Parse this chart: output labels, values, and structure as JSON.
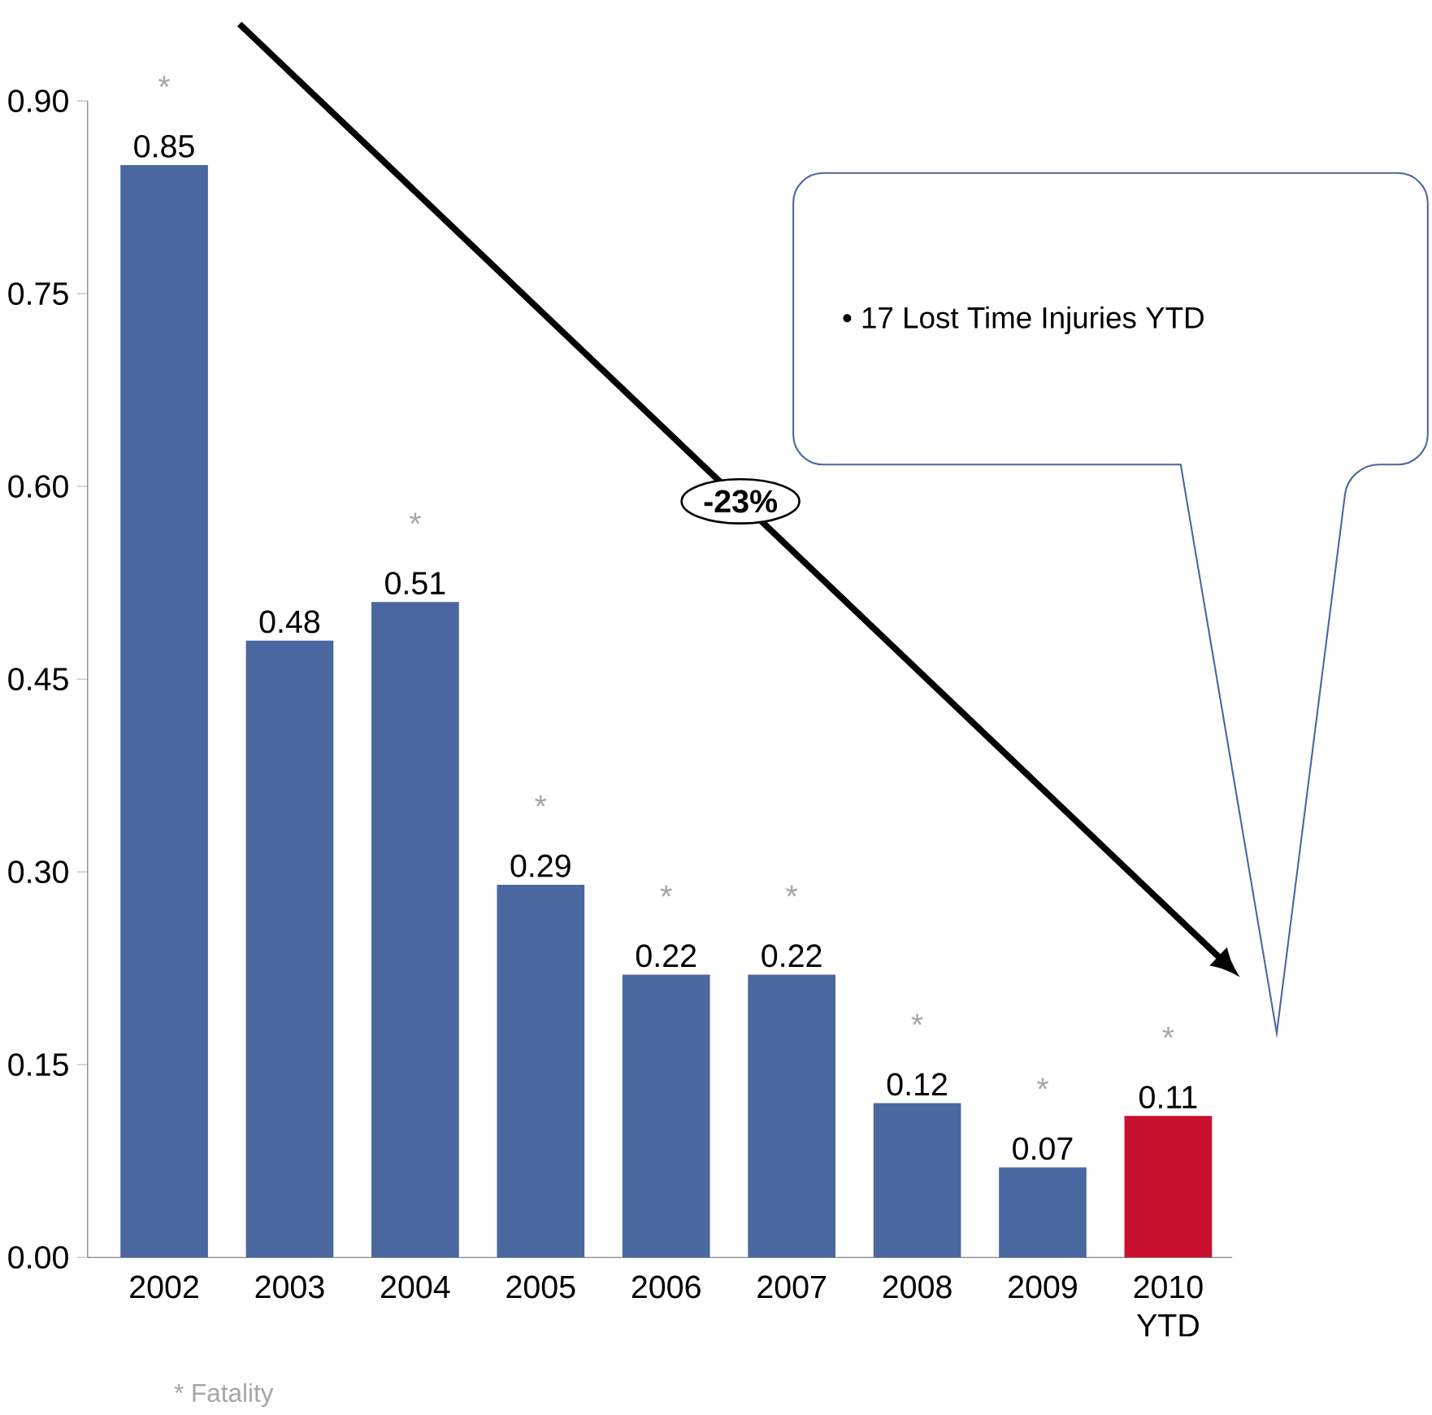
{
  "chart_data": {
    "type": "bar",
    "categories": [
      "2002",
      "2003",
      "2004",
      "2005",
      "2006",
      "2007",
      "2008",
      "2009",
      "2010 YTD"
    ],
    "values": [
      0.85,
      0.48,
      0.51,
      0.29,
      0.22,
      0.22,
      0.12,
      0.07,
      0.11
    ],
    "colors": [
      "#4a67a0",
      "#4a67a0",
      "#4a67a0",
      "#4a67a0",
      "#4a67a0",
      "#4a67a0",
      "#4a67a0",
      "#4a67a0",
      "#c8102e"
    ],
    "ylim": [
      0,
      0.9
    ],
    "yticks": [
      {
        "value": 0,
        "label": "0.00"
      },
      {
        "value": 0.15,
        "label": "0.15"
      },
      {
        "value": 0.3,
        "label": "0.30"
      },
      {
        "value": 0.45,
        "label": "0.45"
      },
      {
        "value": 0.6,
        "label": "0.60"
      },
      {
        "value": 0.75,
        "label": "0.75"
      },
      {
        "value": 0.9,
        "label": "0.90"
      }
    ],
    "data_labels": true,
    "grid": false,
    "annotations": [
      "• 17 Lost Time Injuries YTD",
      "-23%",
      "* Fatality",
      {
        "text": "*",
        "x": "2002",
        "y": 0.85
      },
      {
        "text": "*",
        "x": "2004",
        "y": 0.51
      },
      {
        "text": "*",
        "x": "2005",
        "y": 0.29
      },
      {
        "text": "*",
        "x": "2006",
        "y": 0.22
      },
      {
        "text": "*",
        "x": "2007",
        "y": 0.22
      },
      {
        "text": "*",
        "x": "2008",
        "y": 0.12
      },
      {
        "text": "*",
        "x": "2009",
        "y": 0.07
      },
      {
        "text": "*",
        "x": "2010 YTD",
        "y": 0.11
      }
    ]
  }
}
